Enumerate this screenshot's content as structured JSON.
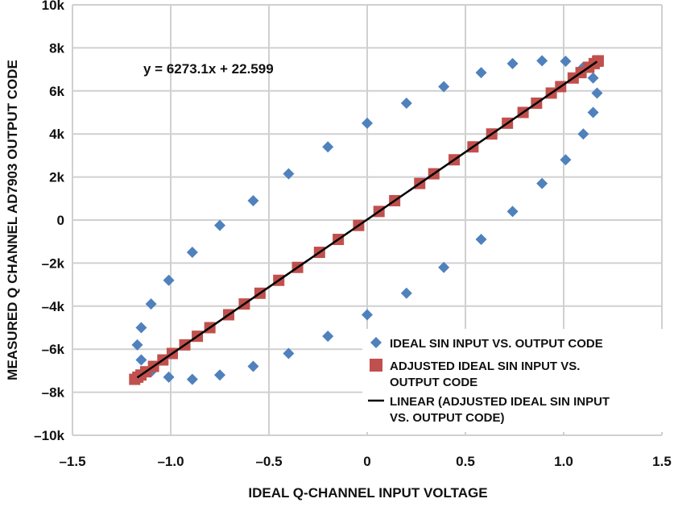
{
  "chart_data": {
    "type": "scatter",
    "title": "",
    "xlabel": "IDEAL Q-CHANNEL INPUT VOLTAGE",
    "ylabel": "MEASURED Q CHANNEL AD7903 OUTPUT CODE",
    "xlim": [
      -1.5,
      1.5
    ],
    "ylim": [
      -10000,
      10000
    ],
    "grid": true,
    "legend_position": "bottom-right",
    "x_ticks": [
      -1.5,
      -1.0,
      -0.5,
      0,
      0.5,
      1.0,
      1.5
    ],
    "x_tick_labels": [
      "–1.5",
      "–1.0",
      "–0.5",
      "0",
      "0.5",
      "1.0",
      "1.5"
    ],
    "y_ticks": [
      10000,
      8000,
      6000,
      4000,
      2000,
      0,
      -2000,
      -4000,
      -6000,
      -8000,
      -10000
    ],
    "y_tick_labels": [
      "10k",
      "8k",
      "6k",
      "4k",
      "2k",
      "0",
      "–2k",
      "–4k",
      "–6k",
      "–8k",
      "–10k"
    ],
    "annotation": "y = 6273.1x + 22.599",
    "series": [
      {
        "name": "IDEAL SIN INPUT VS. OUTPUT CODE",
        "color": "#4f81bd",
        "marker": "diamond",
        "x": [
          0,
          0.2,
          0.39,
          0.58,
          0.74,
          0.89,
          1.01,
          1.1,
          1.15,
          1.17,
          1.15,
          1.1,
          1.01,
          0.89,
          0.74,
          0.58,
          0.39,
          0.2,
          0,
          -0.2,
          -0.4,
          -0.58,
          -0.75,
          -0.89,
          -1.01,
          -1.1,
          -1.15,
          -1.17,
          -1.15,
          -1.1,
          -1.01,
          -0.89,
          -0.75,
          -0.58,
          -0.4,
          -0.2
        ],
        "y": [
          4500,
          5430,
          6200,
          6850,
          7270,
          7400,
          7380,
          7100,
          6600,
          5900,
          5000,
          4000,
          2800,
          1700,
          400,
          -900,
          -2200,
          -3400,
          -4400,
          -5400,
          -6200,
          -6800,
          -7200,
          -7400,
          -7300,
          -7050,
          -6500,
          -5800,
          -5000,
          -3900,
          -2800,
          -1500,
          -250,
          900,
          2150,
          3400
        ]
      },
      {
        "name": "ADJUSTED IDEAL SIN INPUT VS. OUTPUT CODE",
        "color": "#c0504d",
        "marker": "square",
        "y": [
          -7400,
          -7300,
          -7200,
          -7050,
          -6800,
          -6500,
          -6200,
          -5800,
          -5400,
          -5000,
          -4400,
          -3900,
          -3400,
          -2800,
          -2200,
          -1500,
          -900,
          -250,
          400,
          900,
          1700,
          2150,
          2800,
          3400,
          4000,
          4500,
          5000,
          5430,
          5900,
          6200,
          6600,
          6850,
          7100,
          7270,
          7380,
          7400
        ]
      },
      {
        "name": "LINEAR (ADJUSTED IDEAL SIN INPUT VS. OUTPUT CODE)",
        "color": "#000000",
        "type": "line",
        "slope": 6273.1,
        "intercept": 22.599,
        "x_range": [
          -1.17,
          1.17
        ]
      }
    ],
    "legend": [
      {
        "lines": [
          "IDEAL SIN INPUT VS. OUTPUT CODE"
        ]
      },
      {
        "lines": [
          "ADJUSTED IDEAL SIN INPUT VS.",
          "OUTPUT CODE"
        ]
      },
      {
        "lines": [
          "LINEAR (ADJUSTED IDEAL SIN INPUT",
          "VS. OUTPUT CODE)"
        ]
      }
    ]
  }
}
